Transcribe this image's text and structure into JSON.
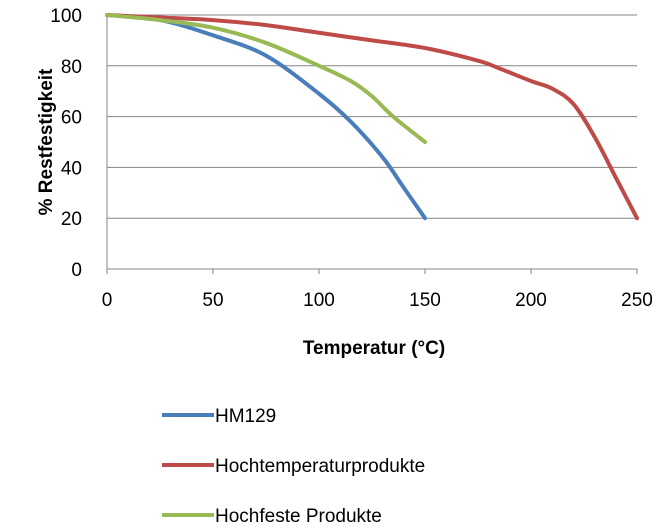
{
  "chart_data": {
    "type": "line",
    "title": "",
    "xlabel": "Temperatur (°C)",
    "ylabel": "% Restfestigkeit",
    "xlim": [
      0,
      250
    ],
    "ylim": [
      0,
      100
    ],
    "x_ticks": [
      "0",
      "50",
      "100",
      "150",
      "200",
      "250"
    ],
    "y_ticks": [
      "0",
      "20",
      "40",
      "60",
      "80",
      "100"
    ],
    "grid": "horizontal",
    "legend_position": "bottom",
    "series": [
      {
        "name": "HM129",
        "color": "#4a7ebb",
        "points": [
          [
            0,
            100
          ],
          [
            25,
            98
          ],
          [
            50,
            92
          ],
          [
            75,
            84
          ],
          [
            100,
            69
          ],
          [
            115,
            58
          ],
          [
            130,
            44
          ],
          [
            140,
            32
          ],
          [
            150,
            20
          ]
        ]
      },
      {
        "name": "Hochtemperaturprodukte",
        "color": "#be4b48",
        "points": [
          [
            0,
            100
          ],
          [
            25,
            99
          ],
          [
            50,
            98
          ],
          [
            75,
            96
          ],
          [
            100,
            93
          ],
          [
            125,
            90
          ],
          [
            150,
            87
          ],
          [
            175,
            82
          ],
          [
            185,
            79
          ],
          [
            200,
            74
          ],
          [
            210,
            71
          ],
          [
            220,
            65
          ],
          [
            230,
            52
          ],
          [
            240,
            36
          ],
          [
            250,
            20
          ]
        ]
      },
      {
        "name": "Hochfeste Produkte",
        "color": "#98b954",
        "points": [
          [
            0,
            100
          ],
          [
            25,
            98
          ],
          [
            50,
            95
          ],
          [
            75,
            89
          ],
          [
            100,
            80
          ],
          [
            115,
            74
          ],
          [
            125,
            68
          ],
          [
            135,
            60
          ],
          [
            150,
            50
          ]
        ]
      }
    ]
  }
}
